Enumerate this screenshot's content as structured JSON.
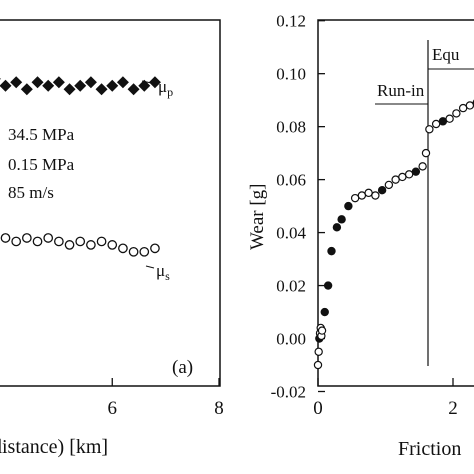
{
  "chart_data": [
    {
      "panel": "a",
      "type": "scatter",
      "panel_label": "(a)",
      "xlabel_visible": "distance) [km]",
      "x_ticks": [
        "6",
        "8"
      ],
      "xlim": [
        3.0,
        8.0
      ],
      "ylim": [
        0.0,
        1.0
      ],
      "annotations": [
        "34.5 MPa",
        "0.15 MPa",
        "85 m/s"
      ],
      "series": [
        {
          "name": "μp",
          "marker": "filled-diamond",
          "x": [
            3.0,
            3.2,
            3.4,
            3.6,
            3.8,
            4.0,
            4.2,
            4.4,
            4.6,
            4.8,
            5.0,
            5.2,
            5.4,
            5.6,
            5.8,
            6.0,
            6.2,
            6.4,
            6.6,
            6.8
          ],
          "y": [
            0.82,
            0.83,
            0.81,
            0.82,
            0.83,
            0.81,
            0.82,
            0.8,
            0.82,
            0.81,
            0.82,
            0.8,
            0.81,
            0.82,
            0.8,
            0.81,
            0.82,
            0.8,
            0.81,
            0.82
          ]
        },
        {
          "name": "μs",
          "marker": "open-circle",
          "x": [
            3.0,
            3.2,
            3.4,
            3.6,
            3.8,
            4.0,
            4.2,
            4.4,
            4.6,
            4.8,
            5.0,
            5.2,
            5.4,
            5.6,
            5.8,
            6.0,
            6.2,
            6.4,
            6.6,
            6.8
          ],
          "y": [
            0.37,
            0.37,
            0.38,
            0.37,
            0.36,
            0.37,
            0.36,
            0.37,
            0.36,
            0.37,
            0.36,
            0.35,
            0.36,
            0.35,
            0.36,
            0.35,
            0.34,
            0.33,
            0.33,
            0.34
          ]
        }
      ]
    },
    {
      "panel": "b",
      "type": "scatter",
      "ylabel": "Wear [g]",
      "xlabel_visible": "Friction",
      "y_ticks": [
        "0.12",
        "0.10",
        "0.08",
        "0.06",
        "0.04",
        "0.02",
        "0.00",
        "-0.02"
      ],
      "x_ticks": [
        "0",
        "2"
      ],
      "xlim": [
        0.0,
        3.0
      ],
      "ylim": [
        -0.02,
        0.12
      ],
      "regions": [
        {
          "label": "Run-in",
          "x_start": 0.7,
          "x_end": 1.62
        },
        {
          "label": "Equ",
          "x_start": 1.62,
          "x_end": 3.0
        }
      ],
      "divider_x": 1.62,
      "series": [
        {
          "name": "",
          "marker": "open-circle",
          "x": [
            0.0,
            0.01,
            0.02,
            0.03,
            0.04,
            0.05,
            0.06,
            0.1,
            0.15,
            0.2,
            0.28,
            0.35,
            0.45,
            0.55,
            0.65,
            0.75,
            0.85,
            0.95,
            1.05,
            1.15,
            1.25,
            1.35,
            1.45,
            1.55,
            1.6,
            1.65,
            1.75,
            1.85,
            1.95,
            2.05,
            2.15,
            2.25,
            2.35
          ],
          "y": [
            -0.01,
            -0.005,
            0.0,
            0.002,
            0.004,
            0.001,
            0.003,
            0.01,
            0.02,
            0.033,
            0.042,
            0.045,
            0.05,
            0.053,
            0.054,
            0.055,
            0.054,
            0.056,
            0.058,
            0.06,
            0.061,
            0.062,
            0.063,
            0.065,
            0.07,
            0.079,
            0.081,
            0.082,
            0.083,
            0.085,
            0.087,
            0.088,
            0.089
          ]
        }
      ]
    }
  ]
}
